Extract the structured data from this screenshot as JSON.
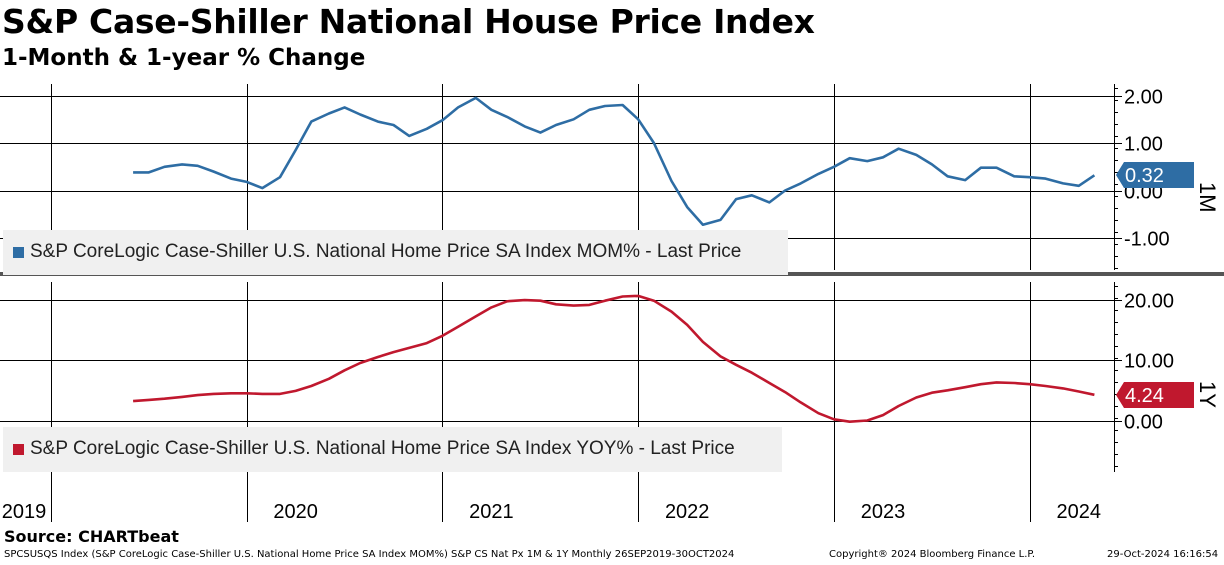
{
  "header": {
    "title": "S&P Case-Shiller National House Price Index",
    "subtitle": "1-Month & 1-year % Change"
  },
  "source": "Source: CHARTbeat",
  "footer": {
    "ticker_info": "SPCSUSQS Index (S&P CoreLogic Case-Shiller U.S. National Home Price SA Index MOM%) S&P CS Nat Px 1M & 1Y  Monthly 26SEP2019-30OCT2024",
    "copyright": "Copyright® 2024 Bloomberg Finance L.P.",
    "timestamp": "29-Oct-2024 16:16:54"
  },
  "colors": {
    "mom": "#2e6da4",
    "yoy": "#c0182e",
    "grid": "#000000",
    "legend_bg": "#f0f0f0",
    "divider": "#555555"
  },
  "chart_data": [
    {
      "type": "line",
      "panel": "top",
      "panel_label": "1M",
      "legend": "S&P CoreLogic Case-Shiller U.S. National Home Price SA Index MOM% - Last Price",
      "last_value": 0.32,
      "last_value_label": "0.32",
      "ylim": [
        -1.7,
        2.3
      ],
      "yticks": [
        2.0,
        1.0,
        0.0,
        -1.0
      ],
      "ytick_labels": [
        "2.00",
        "1.00",
        "0.00",
        "-1.00"
      ],
      "series": [
        {
          "name": "MOM%",
          "x": [
            2019.67,
            2019.75,
            2019.83,
            2019.92,
            2020.0,
            2020.08,
            2020.17,
            2020.25,
            2020.33,
            2020.42,
            2020.5,
            2020.58,
            2020.67,
            2020.75,
            2020.83,
            2020.92,
            2021.0,
            2021.08,
            2021.17,
            2021.25,
            2021.33,
            2021.42,
            2021.5,
            2021.58,
            2021.67,
            2021.75,
            2021.83,
            2021.92,
            2022.0,
            2022.08,
            2022.17,
            2022.25,
            2022.33,
            2022.42,
            2022.5,
            2022.58,
            2022.67,
            2022.75,
            2022.83,
            2022.92,
            2023.0,
            2023.08,
            2023.17,
            2023.25,
            2023.33,
            2023.42,
            2023.5,
            2023.58,
            2023.67,
            2023.75,
            2023.83,
            2023.92,
            2024.0,
            2024.08,
            2024.17,
            2024.25,
            2024.33,
            2024.42,
            2024.5,
            2024.58
          ],
          "values": [
            0.38,
            0.38,
            0.5,
            0.55,
            0.52,
            0.4,
            0.25,
            0.18,
            0.05,
            0.28,
            0.85,
            1.45,
            1.62,
            1.75,
            1.6,
            1.45,
            1.38,
            1.15,
            1.3,
            1.48,
            1.75,
            1.95,
            1.7,
            1.55,
            1.35,
            1.22,
            1.38,
            1.5,
            1.7,
            1.78,
            1.8,
            1.5,
            1.0,
            0.2,
            -0.35,
            -0.72,
            -0.62,
            -0.18,
            -0.1,
            -0.25,
            0.0,
            0.15,
            0.35,
            0.5,
            0.68,
            0.62,
            0.7,
            0.88,
            0.75,
            0.55,
            0.3,
            0.22,
            0.48,
            0.48,
            0.3,
            0.28,
            0.25,
            0.15,
            0.1,
            0.32
          ]
        }
      ],
      "xlabel": "",
      "ylabel": ""
    },
    {
      "type": "line",
      "panel": "bottom",
      "panel_label": "1Y",
      "legend": "S&P CoreLogic Case-Shiller U.S. National Home Price SA Index YOY% - Last Price",
      "last_value": 4.24,
      "last_value_label": "4.24",
      "ylim": [
        -8.5,
        22.5
      ],
      "yticks": [
        20.0,
        10.0,
        0.0
      ],
      "ytick_labels": [
        "20.00",
        "10.00",
        "0.00"
      ],
      "series": [
        {
          "name": "YOY%",
          "x": [
            2019.67,
            2019.75,
            2019.83,
            2019.92,
            2020.0,
            2020.08,
            2020.17,
            2020.25,
            2020.33,
            2020.42,
            2020.5,
            2020.58,
            2020.67,
            2020.75,
            2020.83,
            2020.92,
            2021.0,
            2021.08,
            2021.17,
            2021.25,
            2021.33,
            2021.42,
            2021.5,
            2021.58,
            2021.67,
            2021.75,
            2021.83,
            2021.92,
            2022.0,
            2022.08,
            2022.17,
            2022.25,
            2022.33,
            2022.42,
            2022.5,
            2022.58,
            2022.67,
            2022.75,
            2022.83,
            2022.92,
            2023.0,
            2023.08,
            2023.17,
            2023.25,
            2023.33,
            2023.42,
            2023.5,
            2023.58,
            2023.67,
            2023.75,
            2023.83,
            2023.92,
            2024.0,
            2024.08,
            2024.17,
            2024.25,
            2024.33,
            2024.42,
            2024.5,
            2024.58
          ],
          "values": [
            3.2,
            3.4,
            3.6,
            3.9,
            4.2,
            4.4,
            4.5,
            4.5,
            4.4,
            4.4,
            4.9,
            5.7,
            6.9,
            8.3,
            9.5,
            10.5,
            11.3,
            12.0,
            12.8,
            14.0,
            15.5,
            17.2,
            18.7,
            19.7,
            19.9,
            19.8,
            19.2,
            19.0,
            19.1,
            19.8,
            20.5,
            20.6,
            19.8,
            18.0,
            15.8,
            13.0,
            10.6,
            9.2,
            7.9,
            6.2,
            4.7,
            3.0,
            1.2,
            0.2,
            -0.2,
            0.0,
            0.9,
            2.4,
            3.8,
            4.6,
            5.0,
            5.5,
            6.0,
            6.3,
            6.2,
            6.0,
            5.7,
            5.3,
            4.8,
            4.24
          ]
        }
      ],
      "xlabel": "",
      "ylabel": ""
    }
  ],
  "x_axis": {
    "year_labels": [
      "2019",
      "2020",
      "2021",
      "2022",
      "2023",
      "2024"
    ],
    "year_label_positions": [
      2019.0,
      2020.0,
      2021.0,
      2022.0,
      2023.0,
      2024.0
    ],
    "gridline_positions": [
      2019.25,
      2020.25,
      2021.25,
      2022.25,
      2023.25,
      2024.25
    ],
    "xlim": [
      2018.99,
      2024.68
    ]
  }
}
